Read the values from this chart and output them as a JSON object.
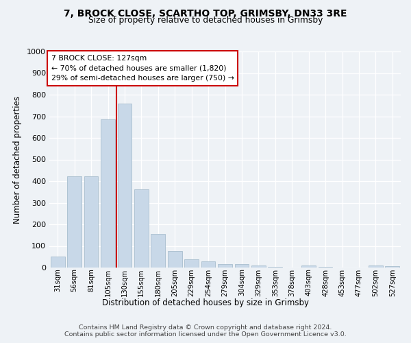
{
  "title_line1": "7, BROCK CLOSE, SCARTHO TOP, GRIMSBY, DN33 3RE",
  "title_line2": "Size of property relative to detached houses in Grimsby",
  "xlabel": "Distribution of detached houses by size in Grimsby",
  "ylabel": "Number of detached properties",
  "categories": [
    "31sqm",
    "56sqm",
    "81sqm",
    "105sqm",
    "130sqm",
    "155sqm",
    "180sqm",
    "205sqm",
    "229sqm",
    "254sqm",
    "279sqm",
    "304sqm",
    "329sqm",
    "353sqm",
    "378sqm",
    "403sqm",
    "428sqm",
    "453sqm",
    "477sqm",
    "502sqm",
    "527sqm"
  ],
  "values": [
    50,
    422,
    422,
    685,
    760,
    362,
    155,
    75,
    38,
    27,
    15,
    15,
    8,
    2,
    0,
    8,
    2,
    0,
    0,
    8,
    5
  ],
  "bar_color": "#c8d8e8",
  "bar_edge_color": "#a8bece",
  "vline_color": "#cc0000",
  "box_edge_color": "#cc0000",
  "annotation_line1": "7 BROCK CLOSE: 127sqm",
  "annotation_line2": "← 70% of detached houses are smaller (1,820)",
  "annotation_line3": "29% of semi-detached houses are larger (750) →",
  "ylim": [
    0,
    1000
  ],
  "yticks": [
    0,
    100,
    200,
    300,
    400,
    500,
    600,
    700,
    800,
    900,
    1000
  ],
  "footer_line1": "Contains HM Land Registry data © Crown copyright and database right 2024.",
  "footer_line2": "Contains public sector information licensed under the Open Government Licence v3.0.",
  "bg_color": "#eef2f6",
  "grid_color": "#ffffff",
  "vline_xindex": 3.5
}
